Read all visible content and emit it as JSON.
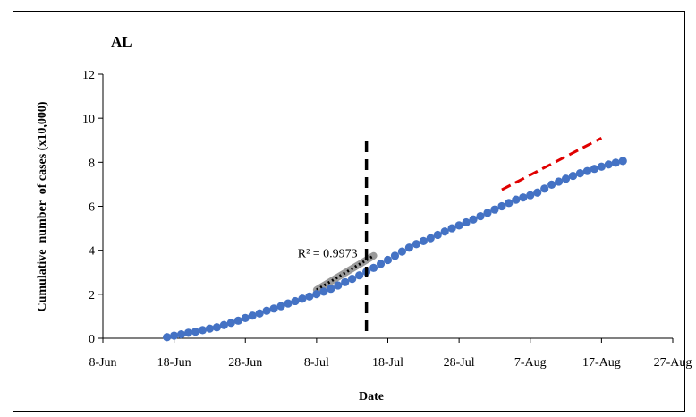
{
  "chart_data": {
    "type": "scatter",
    "title": "AL",
    "xlabel": "Date",
    "ylabel": "Cumulative  number  of cases (x10,000)",
    "x_tick_labels": [
      "8-Jun",
      "18-Jun",
      "28-Jun",
      "8-Jul",
      "18-Jul",
      "28-Jul",
      "7-Aug",
      "17-Aug",
      "27-Aug"
    ],
    "xlim": [
      "2020-06-08",
      "2020-08-27"
    ],
    "y_tick_labels": [
      "0",
      "2",
      "4",
      "6",
      "8",
      "10",
      "12"
    ],
    "ylim": [
      0,
      12
    ],
    "grid": false,
    "annotations": [
      {
        "text": "R² = 0.9973",
        "x": "2020-07-13",
        "y": 3.85
      }
    ],
    "vertical_line": {
      "x": "2020-07-15",
      "style": "dashed",
      "color": "#000000"
    },
    "series": [
      {
        "style": "markers",
        "color": "#4472C4",
        "x_start": "2020-06-17",
        "y": [
          0.05,
          0.12,
          0.18,
          0.25,
          0.3,
          0.37,
          0.44,
          0.5,
          0.6,
          0.7,
          0.8,
          0.92,
          1.03,
          1.13,
          1.25,
          1.35,
          1.46,
          1.58,
          1.69,
          1.8,
          1.9,
          2.01,
          2.12,
          2.25,
          2.4,
          2.55,
          2.7,
          2.86,
          3.02,
          3.2,
          3.38,
          3.56,
          3.75,
          3.94,
          4.12,
          4.28,
          4.42,
          4.55,
          4.7,
          4.85,
          5.0,
          5.13,
          5.27,
          5.4,
          5.55,
          5.7,
          5.85,
          6.0,
          6.15,
          6.3,
          6.4,
          6.5,
          6.62,
          6.8,
          6.98,
          7.12,
          7.25,
          7.38,
          7.5,
          7.6,
          7.7,
          7.8,
          7.9,
          7.98,
          8.06
        ]
      },
      {
        "style": "dotted-fit",
        "color": "#000000",
        "x": [
          "2020-07-08",
          "2020-07-16"
        ],
        "y": [
          2.2,
          3.75
        ]
      },
      {
        "style": "dashed-projection",
        "color": "#E00000",
        "x": [
          "2020-08-03",
          "2020-08-17"
        ],
        "y": [
          6.75,
          9.1
        ]
      }
    ]
  }
}
